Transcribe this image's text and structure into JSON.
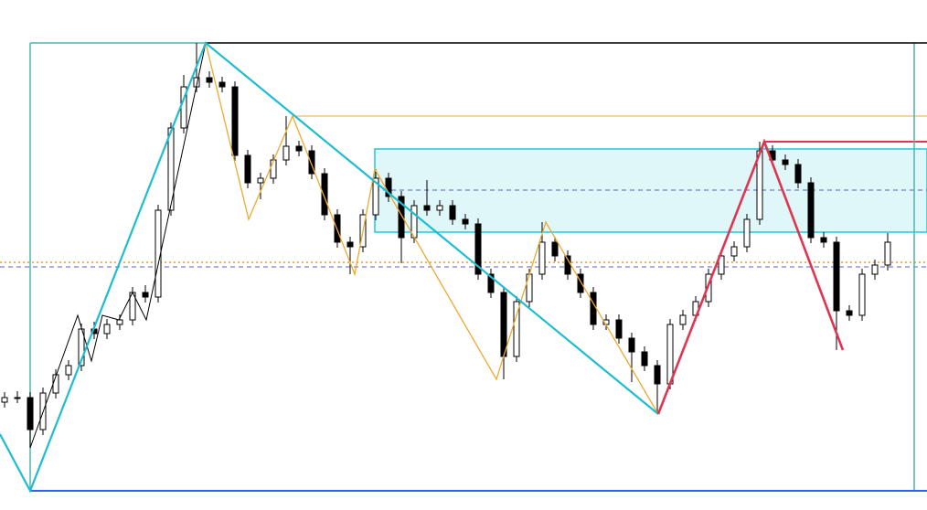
{
  "chart_data": {
    "type": "candlestick",
    "open": [
      118,
      123,
      123,
      88,
      128,
      148,
      158,
      198,
      193,
      203,
      208,
      238,
      233,
      328,
      418,
      463,
      473,
      468,
      463,
      388,
      358,
      363,
      383,
      398,
      393,
      368,
      323,
      293,
      288,
      323,
      363,
      343,
      298,
      333,
      328,
      333,
      318,
      313,
      258,
      238,
      168,
      228,
      258,
      293,
      278,
      258,
      238,
      203,
      208,
      188,
      173,
      158,
      138,
      203,
      213,
      228,
      258,
      278,
      288,
      318,
      393,
      383,
      378,
      358,
      298,
      293,
      218,
      213,
      258,
      268
    ],
    "high": [
      129,
      130,
      129,
      134,
      154,
      164,
      204,
      206,
      209,
      214,
      244,
      246,
      334,
      424,
      476,
      511,
      480,
      474,
      469,
      394,
      369,
      389,
      431,
      404,
      399,
      374,
      329,
      299,
      329,
      373,
      369,
      349,
      339,
      361,
      339,
      339,
      324,
      319,
      264,
      244,
      234,
      264,
      315,
      299,
      284,
      264,
      244,
      214,
      214,
      194,
      179,
      164,
      209,
      219,
      234,
      264,
      284,
      294,
      324,
      403,
      399,
      389,
      384,
      364,
      304,
      299,
      224,
      264,
      274,
      303
    ],
    "low": [
      112,
      117,
      68,
      82,
      122,
      142,
      152,
      187,
      187,
      197,
      202,
      227,
      227,
      322,
      412,
      457,
      462,
      457,
      382,
      352,
      340,
      357,
      377,
      387,
      362,
      317,
      287,
      258,
      282,
      317,
      337,
      270,
      292,
      322,
      322,
      312,
      307,
      252,
      232,
      143,
      162,
      222,
      252,
      272,
      252,
      232,
      197,
      197,
      182,
      140,
      152,
      105,
      132,
      197,
      207,
      222,
      252,
      272,
      282,
      312,
      377,
      372,
      352,
      292,
      287,
      175,
      207,
      207,
      252,
      262
    ],
    "close": [
      123,
      123,
      88,
      128,
      148,
      158,
      198,
      193,
      203,
      208,
      238,
      233,
      328,
      418,
      463,
      473,
      468,
      463,
      388,
      358,
      363,
      383,
      398,
      393,
      368,
      323,
      293,
      288,
      323,
      363,
      343,
      298,
      333,
      328,
      333,
      318,
      313,
      258,
      238,
      168,
      228,
      258,
      293,
      278,
      258,
      238,
      203,
      208,
      188,
      173,
      158,
      138,
      203,
      213,
      228,
      258,
      278,
      288,
      318,
      393,
      383,
      378,
      358,
      298,
      293,
      218,
      213,
      258,
      268,
      293
    ],
    "ylim": [
      0,
      558
    ],
    "up_color": "#ffffff",
    "down_color": "#000000",
    "wick_color": "#000000"
  }
}
